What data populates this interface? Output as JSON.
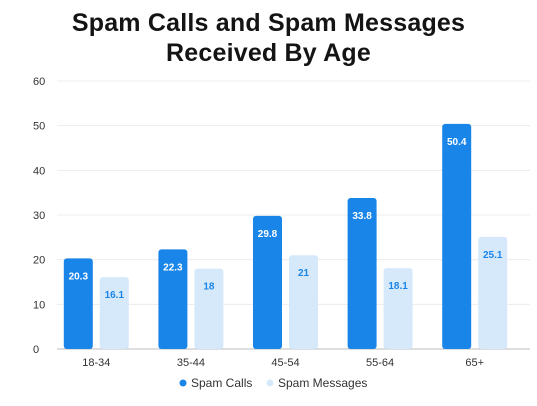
{
  "chart_data": {
    "type": "bar",
    "title": "Spam Calls and Spam Messages\nReceived By Age",
    "categories": [
      "18-34",
      "35-44",
      "45-54",
      "55-64",
      "65+"
    ],
    "series": [
      {
        "name": "Spam Calls",
        "values": [
          20.3,
          22.3,
          29.8,
          33.8,
          50.4
        ],
        "color": "#1a85e8",
        "label_color": "#ffffff"
      },
      {
        "name": "Spam Messages",
        "values": [
          16.1,
          18,
          21,
          18.1,
          25.1
        ],
        "color": "#d6e9fb",
        "label_color": "#1a85e8"
      }
    ],
    "ylim": [
      0,
      60
    ],
    "yticks": [
      0,
      10,
      20,
      30,
      40,
      50,
      60
    ],
    "grid": true,
    "legend_position": "bottom",
    "xlabel": "",
    "ylabel": ""
  }
}
